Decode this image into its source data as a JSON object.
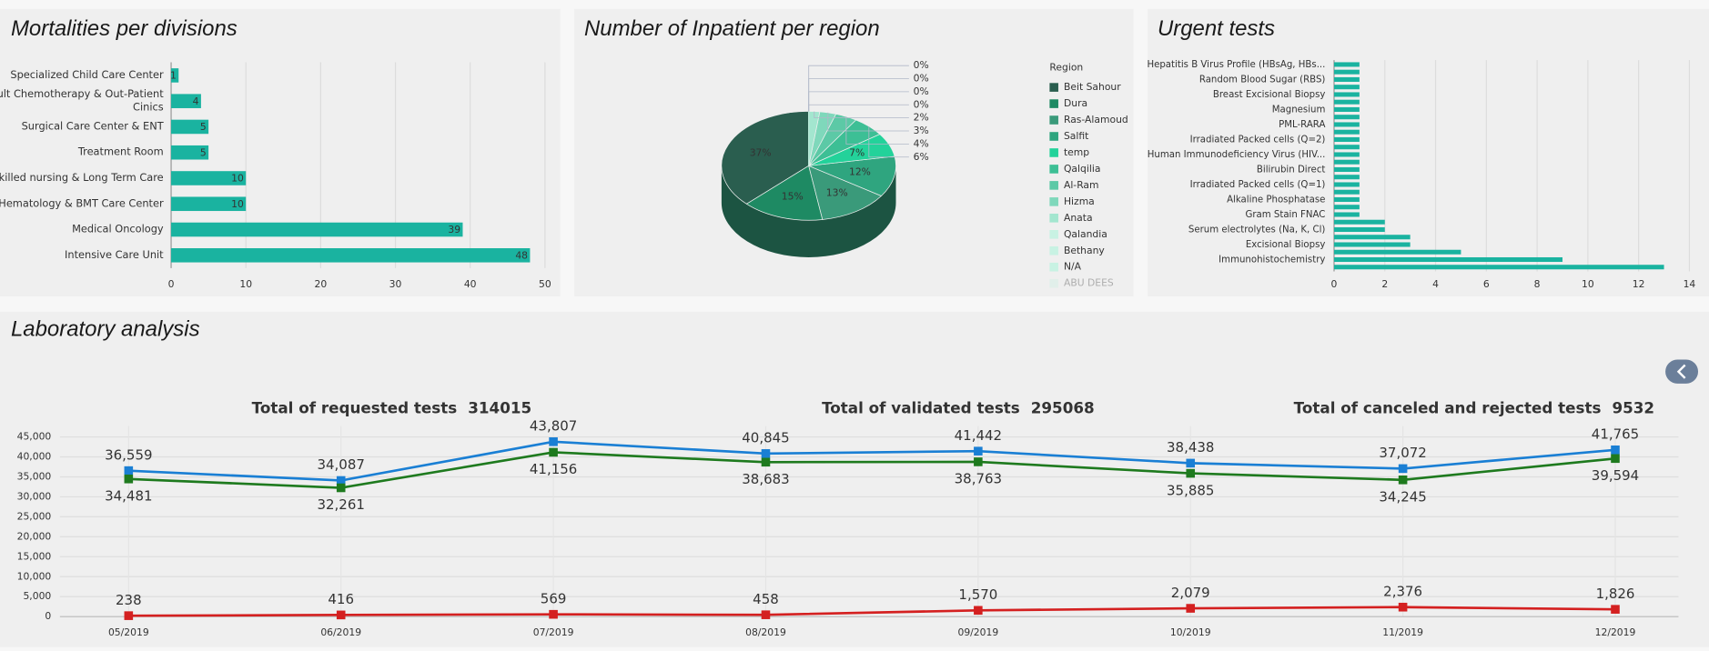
{
  "chart_data": [
    {
      "type": "hbar",
      "title": "Mortalities per divisions",
      "categories": [
        "Specialized Child Care Center",
        "Adult Chemotherapy & Out-Patient Cinics",
        "Surgical Care Center & ENT",
        "Treatment Room",
        "Skilled nursing & Long Term Care",
        "Hematology & BMT Care Center",
        "Medical Oncology",
        "Intensive Care Unit"
      ],
      "values": [
        1,
        4,
        5,
        5,
        10,
        10,
        39,
        48
      ],
      "color": "#1ab3a0",
      "xlim": [
        0,
        50
      ],
      "xticks": [
        0,
        10,
        20,
        30,
        40,
        50
      ],
      "grid": true,
      "data_labels": true
    },
    {
      "type": "pie",
      "title": "Number of Inpatient per region",
      "legend_title": "Region",
      "categories": [
        "Beit Sahour",
        "Dura",
        "Ras-Alamoud",
        "Salfit",
        "temp",
        "Qalqilia",
        "Al-Ram",
        "Hizma",
        "Anata",
        "Qalandia",
        "Bethany",
        "N/A",
        "ABU DEES"
      ],
      "values": [
        37,
        15,
        13,
        12,
        7,
        6,
        4,
        3,
        2,
        0,
        0,
        0,
        0
      ],
      "value_labels": [
        "37%",
        "15%",
        "13%",
        "12%",
        "7%",
        "6%",
        "4%",
        "3%",
        "2%",
        "0%",
        "0%",
        "0%",
        "0%"
      ],
      "colors": [
        "#2a5e4f",
        "#1e8a63",
        "#3a9a7a",
        "#2fa57f",
        "#23d29a",
        "#3dbf95",
        "#5cc9a6",
        "#7fd8bb",
        "#a3e6cf",
        "#c8f2e3",
        "#c8f2e3",
        "#c8f2e3",
        "#c8f2e3"
      ]
    },
    {
      "type": "hbar",
      "title": "Urgent tests",
      "categories": [
        "Hepatitis B Virus Profile (HBsAg, HBs...",
        null,
        "Random Blood Sugar (RBS)",
        null,
        "Breast Excisional Biopsy",
        null,
        "Magnesium",
        null,
        "PML-RARA",
        null,
        "Irradiated Packed cells (Q=2)",
        null,
        "Human Immunodeficiency Virus (HIV...",
        null,
        "Bilirubin Direct",
        null,
        "Irradiated Packed cells (Q=1)",
        null,
        "Alkaline Phosphatase",
        null,
        "Gram Stain FNAC",
        null,
        "Serum electrolytes (Na, K, Cl)",
        null,
        "Excisional Biopsy",
        null,
        "Immunohistochemistry",
        null
      ],
      "values": [
        1,
        1,
        1,
        1,
        1,
        1,
        1,
        1,
        1,
        1,
        1,
        1,
        1,
        1,
        1,
        1,
        1,
        1,
        1,
        1,
        1,
        2,
        2,
        3,
        3,
        5,
        9,
        13
      ],
      "color": "#1ab3a0",
      "xlim": [
        0,
        14
      ],
      "xticks": [
        0,
        2,
        4,
        6,
        8,
        10,
        12,
        14
      ],
      "grid": true,
      "data_labels": false
    },
    {
      "type": "line",
      "title": "Laboratory analysis",
      "categories": [
        "05/2019",
        "06/2019",
        "07/2019",
        "08/2019",
        "09/2019",
        "10/2019",
        "11/2019",
        "12/2019"
      ],
      "series": [
        {
          "name": "Total of requested tests",
          "total": 314015,
          "color": "#1a7fd4",
          "values": [
            36559,
            34087,
            43807,
            40845,
            41442,
            38438,
            37072,
            41765
          ],
          "value_labels": [
            "36,559",
            "34,087",
            "43,807",
            "40,845",
            "41,442",
            "38,438",
            "37,072",
            "41,765"
          ]
        },
        {
          "name": "Total of validated tests",
          "total": 295068,
          "color": "#1e7a1e",
          "values": [
            34481,
            32261,
            41156,
            38683,
            38763,
            35885,
            34245,
            39594
          ],
          "value_labels": [
            "34,481",
            "32,261",
            "41,156",
            "38,683",
            "38,763",
            "35,885",
            "34,245",
            "39,594"
          ]
        },
        {
          "name": "Total of canceled and rejected tests",
          "total": 9532,
          "color": "#d42020",
          "values": [
            238,
            416,
            569,
            458,
            1570,
            2079,
            2376,
            1826
          ],
          "value_labels": [
            "238",
            "416",
            "569",
            "458",
            "1,570",
            "2,079",
            "2,376",
            "1,826"
          ]
        }
      ],
      "ylim": [
        0,
        45000
      ],
      "yticks": [
        0,
        {
          "value": 5000,
          "label": "5,000"
        },
        {
          "value": 10000,
          "label": "10,000"
        },
        {
          "value": 15000,
          "label": "15,000"
        },
        {
          "value": 20000,
          "label": "20,000"
        },
        {
          "value": 25000,
          "label": "25,000"
        },
        {
          "value": 30000,
          "label": "30,000"
        },
        {
          "value": 35000,
          "label": "35,000"
        },
        {
          "value": 40000,
          "label": "40,000"
        },
        {
          "value": 45000,
          "label": "45,000"
        }
      ],
      "grid": true
    }
  ]
}
